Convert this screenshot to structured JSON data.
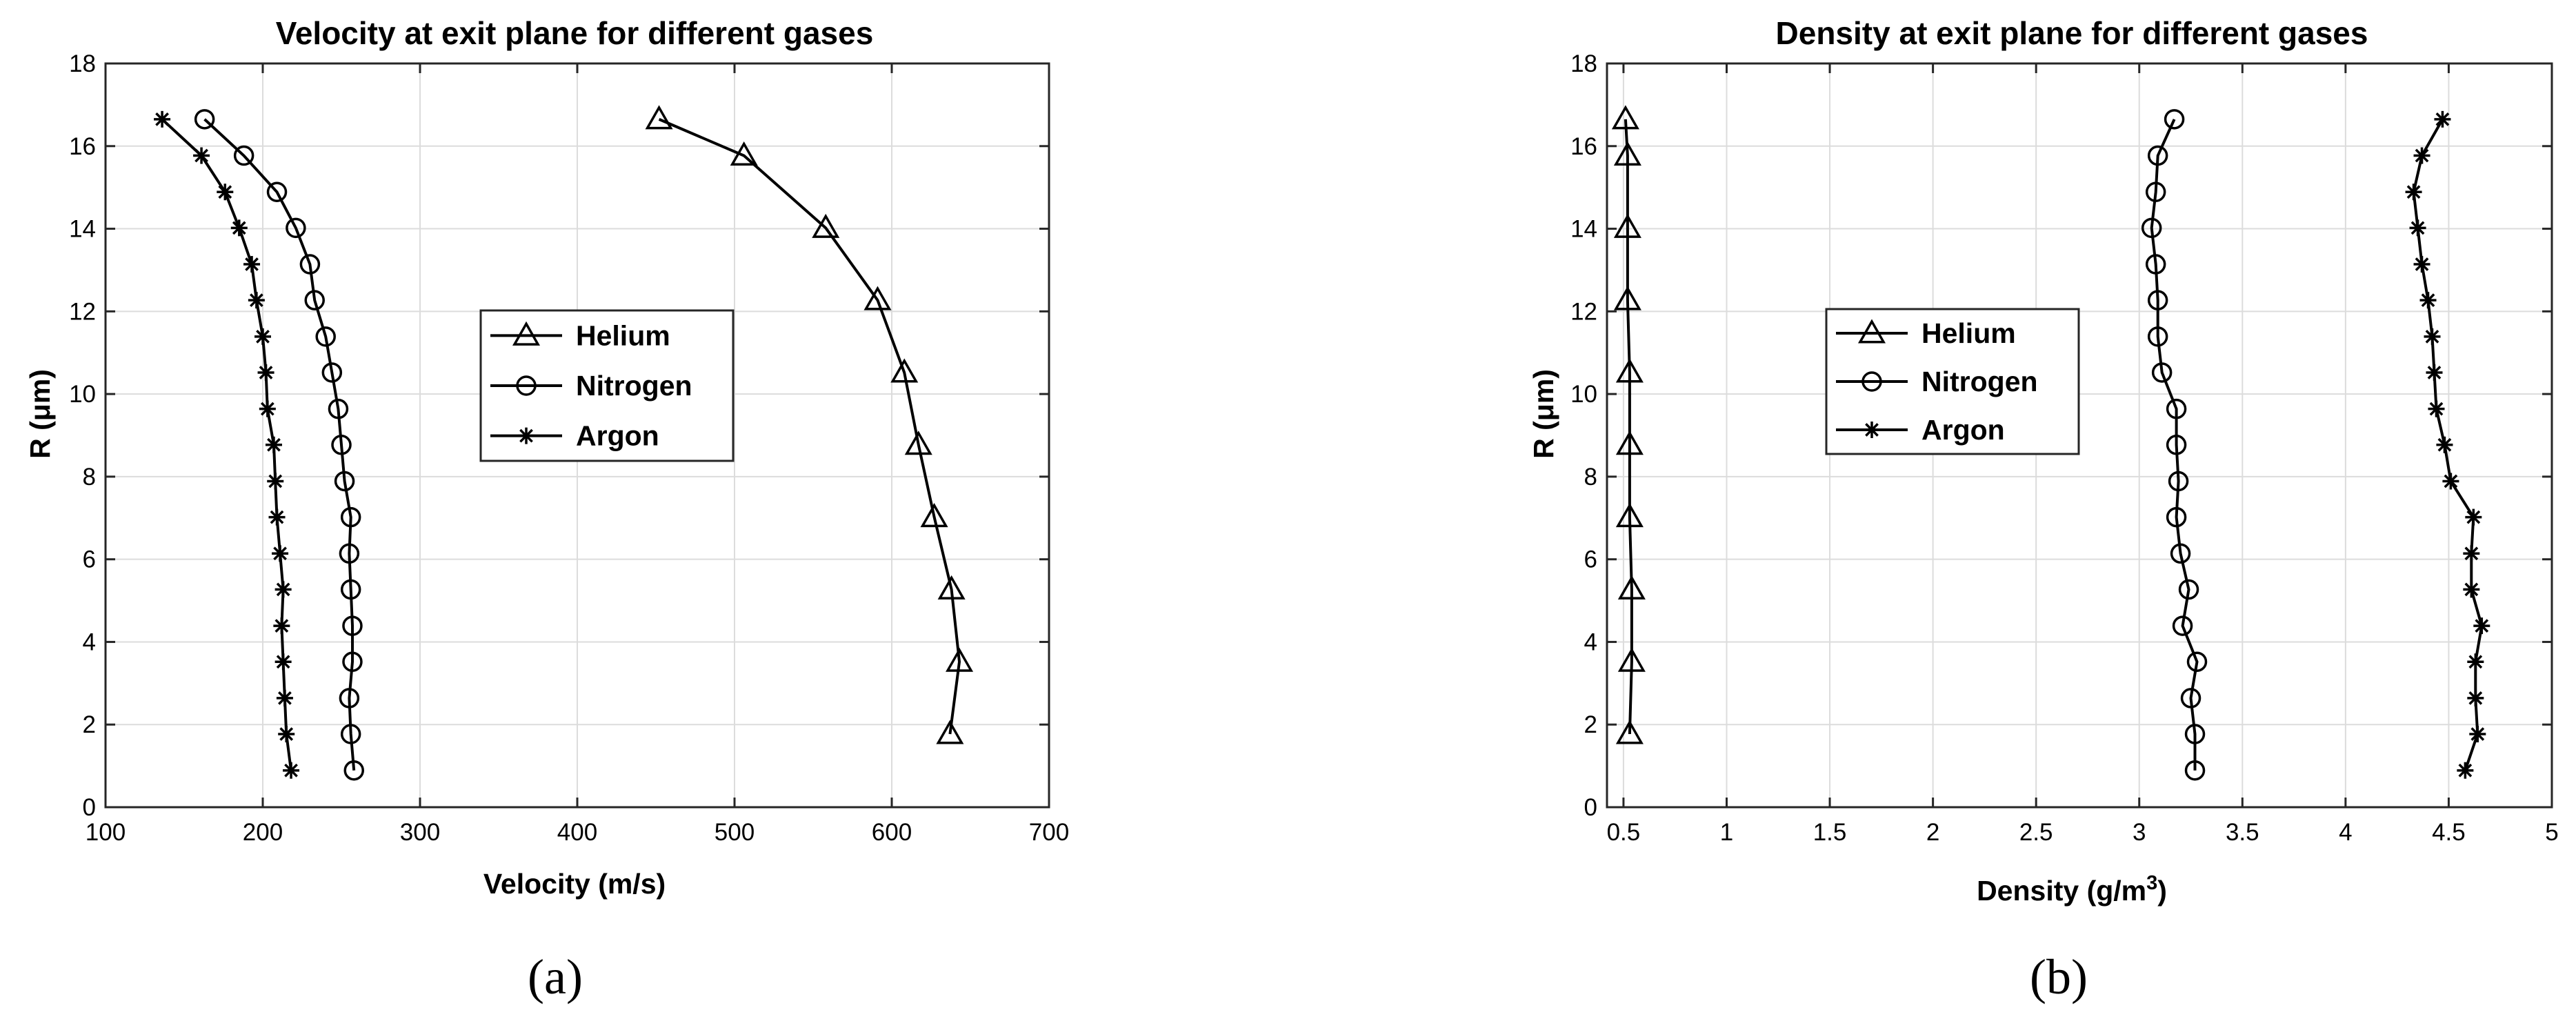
{
  "chart_data": [
    {
      "id": "velocity",
      "type": "line",
      "panel_label": "(a)",
      "title": "Velocity at exit plane for different gases",
      "xlabel": "Velocity (m/s)",
      "ylabel": "R (μm)",
      "xlim": [
        100,
        700
      ],
      "ylim": [
        0,
        18
      ],
      "xticks": [
        100,
        200,
        300,
        400,
        500,
        600,
        700
      ],
      "yticks": [
        0,
        2,
        4,
        6,
        8,
        10,
        12,
        14,
        16,
        18
      ],
      "grid": true,
      "legend_position": "center",
      "series": [
        {
          "name": "Helium",
          "marker": "triangle",
          "points": [
            [
              452,
              16.65
            ],
            [
              506,
              15.77
            ],
            [
              558,
              14.02
            ],
            [
              591,
              12.27
            ],
            [
              608,
              10.52
            ],
            [
              617,
              8.77
            ],
            [
              627,
              7.02
            ],
            [
              638,
              5.27
            ],
            [
              643,
              3.52
            ],
            [
              637,
              1.77
            ]
          ]
        },
        {
          "name": "Nitrogen",
          "marker": "circle",
          "points": [
            [
              163,
              16.65
            ],
            [
              188,
              15.77
            ],
            [
              209,
              14.89
            ],
            [
              221,
              14.02
            ],
            [
              230,
              13.14
            ],
            [
              233,
              12.27
            ],
            [
              240,
              11.39
            ],
            [
              244,
              10.52
            ],
            [
              248,
              9.64
            ],
            [
              250,
              8.77
            ],
            [
              252,
              7.89
            ],
            [
              256,
              7.02
            ],
            [
              255,
              6.14
            ],
            [
              256,
              5.27
            ],
            [
              257,
              4.39
            ],
            [
              257,
              3.52
            ],
            [
              255,
              2.64
            ],
            [
              256,
              1.77
            ],
            [
              258,
              0.89
            ]
          ]
        },
        {
          "name": "Argon",
          "marker": "asterisk",
          "points": [
            [
              136,
              16.65
            ],
            [
              161,
              15.77
            ],
            [
              176,
              14.89
            ],
            [
              185,
              14.02
            ],
            [
              193,
              13.14
            ],
            [
              196,
              12.27
            ],
            [
              200,
              11.39
            ],
            [
              202,
              10.52
            ],
            [
              203,
              9.64
            ],
            [
              207,
              8.77
            ],
            [
              208,
              7.89
            ],
            [
              209,
              7.02
            ],
            [
              211,
              6.14
            ],
            [
              213,
              5.27
            ],
            [
              212,
              4.39
            ],
            [
              213,
              3.52
            ],
            [
              214,
              2.64
            ],
            [
              215,
              1.77
            ],
            [
              218,
              0.89
            ]
          ]
        }
      ]
    },
    {
      "id": "density",
      "type": "line",
      "panel_label": "(b)",
      "title": "Density at exit plane for different gases",
      "xlabel": "Density (g/m",
      "xlabel_sup": "3",
      "xlabel_end": ")",
      "ylabel": "R (μm)",
      "xlim": [
        0.42,
        5
      ],
      "ylim": [
        0,
        18
      ],
      "xticks": [
        0.5,
        1,
        1.5,
        2,
        2.5,
        3,
        3.5,
        4,
        4.5,
        5
      ],
      "xtick_labels": [
        "0.5",
        "1",
        "1.5",
        "2",
        "2.5",
        "3",
        "3.5",
        "4",
        "4.5",
        "5"
      ],
      "yticks": [
        0,
        2,
        4,
        6,
        8,
        10,
        12,
        14,
        16,
        18
      ],
      "grid": true,
      "legend_position": "center-left",
      "series": [
        {
          "name": "Helium",
          "marker": "triangle",
          "points": [
            [
              0.51,
              16.65
            ],
            [
              0.52,
              15.77
            ],
            [
              0.52,
              14.02
            ],
            [
              0.52,
              12.27
            ],
            [
              0.53,
              10.52
            ],
            [
              0.53,
              8.77
            ],
            [
              0.53,
              7.02
            ],
            [
              0.54,
              5.27
            ],
            [
              0.54,
              3.52
            ],
            [
              0.53,
              1.77
            ]
          ]
        },
        {
          "name": "Nitrogen",
          "marker": "circle",
          "points": [
            [
              3.17,
              16.65
            ],
            [
              3.09,
              15.77
            ],
            [
              3.08,
              14.89
            ],
            [
              3.06,
              14.02
            ],
            [
              3.08,
              13.14
            ],
            [
              3.09,
              12.27
            ],
            [
              3.09,
              11.39
            ],
            [
              3.11,
              10.52
            ],
            [
              3.18,
              9.64
            ],
            [
              3.18,
              8.77
            ],
            [
              3.19,
              7.89
            ],
            [
              3.18,
              7.02
            ],
            [
              3.2,
              6.14
            ],
            [
              3.24,
              5.27
            ],
            [
              3.21,
              4.39
            ],
            [
              3.28,
              3.52
            ],
            [
              3.25,
              2.64
            ],
            [
              3.27,
              1.77
            ],
            [
              3.27,
              0.89
            ]
          ]
        },
        {
          "name": "Argon",
          "marker": "asterisk",
          "points": [
            [
              4.47,
              16.65
            ],
            [
              4.37,
              15.77
            ],
            [
              4.33,
              14.89
            ],
            [
              4.35,
              14.02
            ],
            [
              4.37,
              13.14
            ],
            [
              4.4,
              12.27
            ],
            [
              4.42,
              11.39
            ],
            [
              4.43,
              10.52
            ],
            [
              4.44,
              9.64
            ],
            [
              4.48,
              8.77
            ],
            [
              4.51,
              7.89
            ],
            [
              4.62,
              7.02
            ],
            [
              4.61,
              6.14
            ],
            [
              4.61,
              5.27
            ],
            [
              4.66,
              4.39
            ],
            [
              4.63,
              3.52
            ],
            [
              4.63,
              2.64
            ],
            [
              4.64,
              1.77
            ],
            [
              4.58,
              0.89
            ]
          ]
        }
      ]
    }
  ]
}
